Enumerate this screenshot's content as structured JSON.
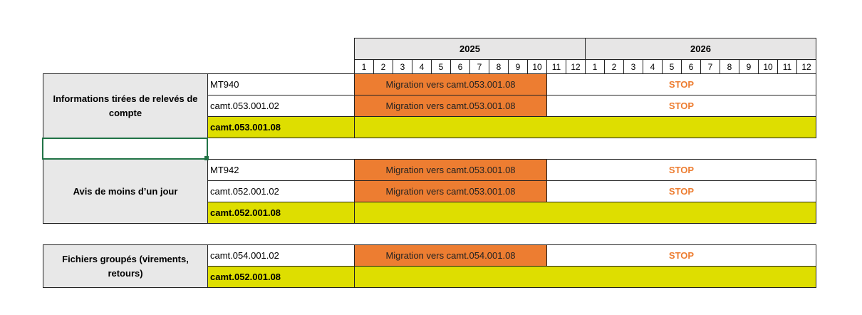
{
  "header": {
    "years": [
      "2025",
      "2026"
    ],
    "months": [
      [
        1,
        2,
        3,
        4,
        5,
        6,
        7,
        8,
        9,
        10,
        11,
        12
      ],
      [
        1,
        2,
        3,
        4,
        5,
        6,
        7,
        8,
        9,
        10,
        11,
        12
      ]
    ]
  },
  "groups": [
    {
      "label": "Informations tirées de relevés de compte",
      "rows": [
        {
          "format": "MT940",
          "migration": "Migration vers camt.053.001.08",
          "status": "STOP"
        },
        {
          "format": "camt.053.001.02",
          "migration": "Migration vers camt.053.001.08",
          "status": "STOP"
        },
        {
          "format": "camt.053.001.08"
        }
      ]
    },
    {
      "label": "Avis de moins d’un jour",
      "rows": [
        {
          "format": "MT942",
          "migration": "Migration vers camt.053.001.08",
          "status": "STOP"
        },
        {
          "format": "camt.052.001.02",
          "migration": "Migration vers camt.053.001.08",
          "status": "STOP"
        },
        {
          "format": "camt.052.001.08"
        }
      ]
    },
    {
      "label": "Fichiers groupés (virements, retours)",
      "rows": [
        {
          "format": "camt.054.001.02",
          "migration": "Migration vers camt.054.001.08",
          "status": "STOP"
        },
        {
          "format": "camt.052.001.08"
        }
      ]
    }
  ]
}
